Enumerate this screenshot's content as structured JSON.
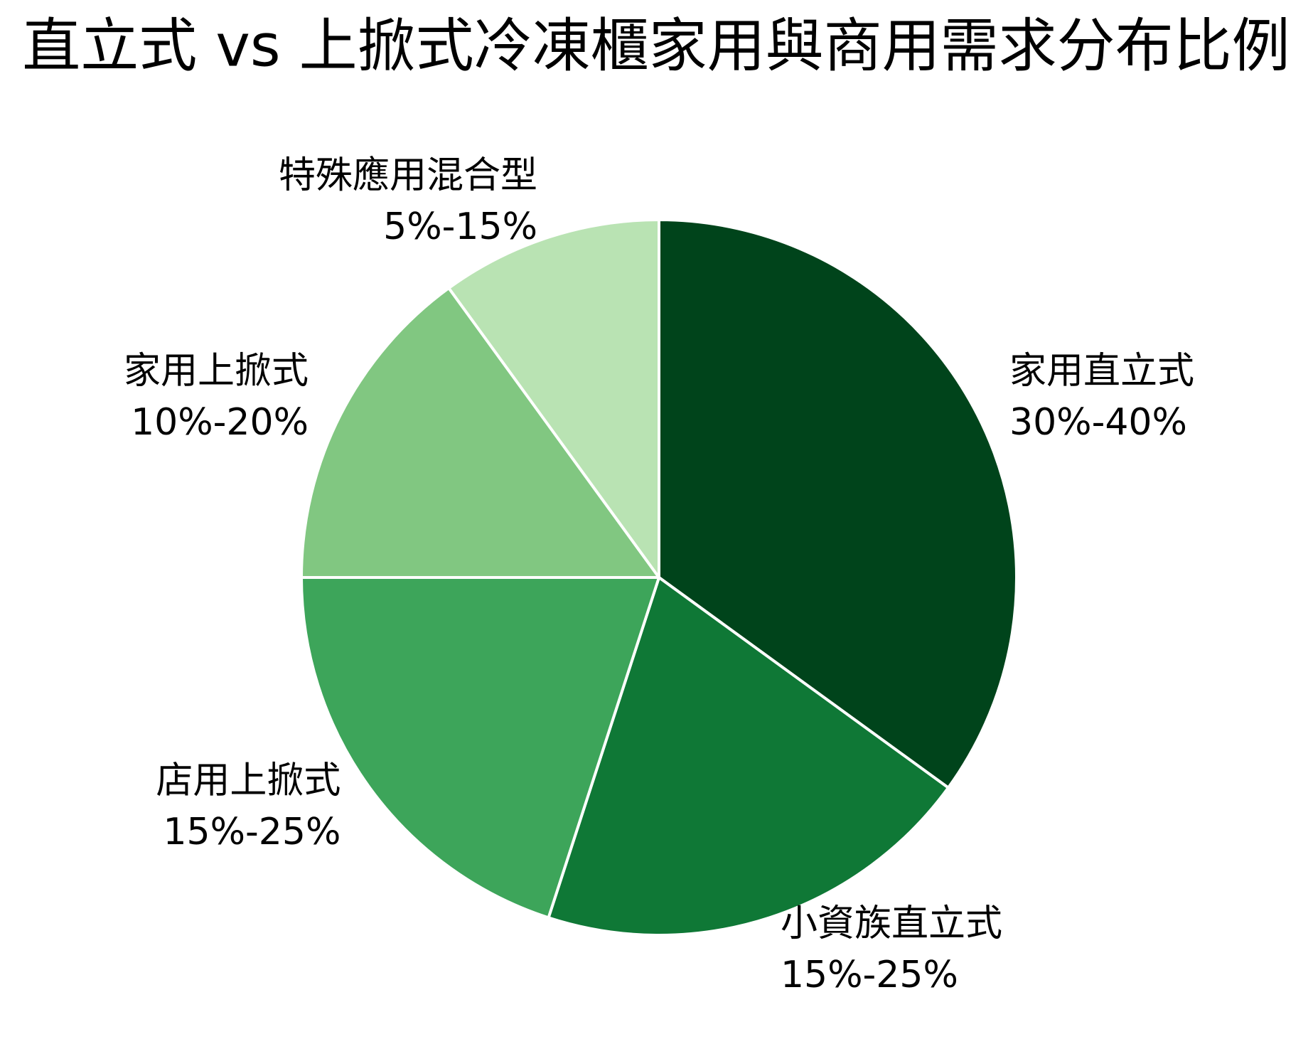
{
  "chart_data": {
    "type": "pie",
    "title": "直立式 vs 上掀式冷凍櫃家用與商用需求分布比例",
    "categories": [
      "家用直立式",
      "小資族直立式",
      "店用上掀式",
      "家用上掀式",
      "特殊應用混合型"
    ],
    "values": [
      35,
      20,
      20,
      15,
      10
    ],
    "value_labels": [
      "30%-40%",
      "15%-25%",
      "15%-25%",
      "10%-20%",
      "5%-15%"
    ],
    "colors": [
      "#00441b",
      "#0f7836",
      "#3da55a",
      "#81c781",
      "#b9e3b3"
    ]
  }
}
